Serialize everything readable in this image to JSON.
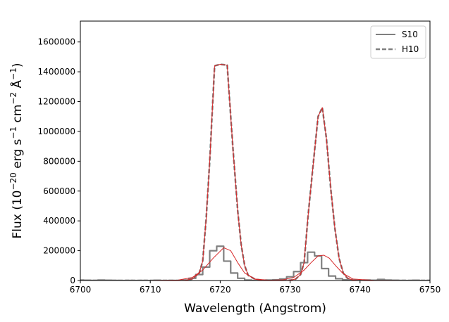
{
  "chart_data": {
    "type": "line",
    "title": "",
    "xlabel": "Wavelength (Angstrom)",
    "ylabel_parts": {
      "base": "Flux (10",
      "exp1": "−20",
      "mid": " erg s",
      "exp2": "−1",
      "mid2": " cm",
      "exp3": "−2",
      "mid3": " Å",
      "exp4": "−1",
      "end": ")"
    },
    "xlim": [
      6700,
      6750
    ],
    "ylim": [
      0,
      1740000
    ],
    "xticks": [
      6700,
      6710,
      6720,
      6730,
      6740,
      6750
    ],
    "xtick_labels": [
      "6700",
      "6710",
      "6720",
      "6730",
      "6740",
      "6750"
    ],
    "yticks": [
      0,
      200000,
      400000,
      600000,
      800000,
      1000000,
      1200000,
      1400000,
      1600000
    ],
    "ytick_labels": [
      "0",
      "200000",
      "400000",
      "600000",
      "800000",
      "1000000",
      "1200000",
      "1400000",
      "1600000"
    ],
    "legend_position": "top-right",
    "series": [
      {
        "name": "S10",
        "style": "steps-solid",
        "color": "#808080",
        "x": [
          6700,
          6701,
          6702,
          6703,
          6704,
          6705,
          6706,
          6707,
          6708,
          6709,
          6710,
          6711,
          6712,
          6713,
          6714,
          6715,
          6716,
          6717,
          6718,
          6719,
          6720,
          6721,
          6722,
          6723,
          6724,
          6725,
          6726,
          6727,
          6728,
          6729,
          6730,
          6731,
          6732,
          6733,
          6734,
          6735,
          6736,
          6737,
          6738,
          6739,
          6740,
          6741,
          6742,
          6743,
          6744,
          6745,
          6746,
          6747,
          6748,
          6749,
          6750
        ],
        "y": [
          3000,
          2000,
          1000,
          3000,
          2000,
          1000,
          0,
          1000,
          0,
          1000,
          0,
          2000,
          0,
          1000,
          0,
          3000,
          15000,
          40000,
          90000,
          200000,
          230000,
          130000,
          50000,
          15000,
          3000,
          0,
          1000,
          3000,
          5000,
          10000,
          25000,
          60000,
          120000,
          190000,
          165000,
          80000,
          30000,
          12000,
          4000,
          2000,
          1000,
          3000,
          2000,
          7000,
          3000,
          2000,
          1000,
          0,
          2000,
          0,
          1000
        ]
      },
      {
        "name": "H10",
        "style": "dashed",
        "color": "#808080",
        "x": [
          6700,
          6702,
          6704,
          6706,
          6708,
          6710,
          6712,
          6714,
          6715,
          6716,
          6717,
          6717.5,
          6718,
          6718.5,
          6719.2,
          6720,
          6721,
          6721.8,
          6722.5,
          6723,
          6723.5,
          6724,
          6725,
          6726,
          6728,
          6730,
          6730.8,
          6731.5,
          6732,
          6732.6,
          6733.3,
          6734,
          6734.6,
          6735.2,
          6735.8,
          6736.4,
          6737,
          6737.6,
          6738.2,
          6739,
          6740,
          6742,
          6744,
          6746,
          6748,
          6750
        ],
        "y": [
          0,
          0,
          0,
          0,
          0,
          0,
          0,
          0,
          2000,
          10000,
          50000,
          130000,
          420000,
          800000,
          1440000,
          1450000,
          1445000,
          900000,
          470000,
          240000,
          100000,
          35000,
          8000,
          2000,
          0,
          2000,
          10000,
          40000,
          120000,
          450000,
          780000,
          1100000,
          1160000,
          950000,
          620000,
          350000,
          150000,
          50000,
          15000,
          3000,
          0,
          0,
          0,
          0,
          0,
          0
        ]
      },
      {
        "name": "",
        "style": "thin-solid",
        "color": "#d62728",
        "x": [
          6700,
          6702,
          6704,
          6706,
          6708,
          6710,
          6712,
          6714,
          6715,
          6716,
          6717,
          6717.5,
          6718,
          6718.5,
          6719.2,
          6720,
          6721,
          6721.8,
          6722.5,
          6723,
          6723.5,
          6724,
          6725,
          6726,
          6728,
          6730,
          6730.8,
          6731.5,
          6732,
          6732.6,
          6733.3,
          6734,
          6734.6,
          6735.2,
          6735.8,
          6736.4,
          6737,
          6737.6,
          6738.2,
          6739,
          6740,
          6742,
          6744,
          6746,
          6748,
          6750
        ],
        "y": [
          0,
          0,
          0,
          0,
          0,
          0,
          0,
          0,
          2000,
          10000,
          50000,
          130000,
          420000,
          800000,
          1440000,
          1450000,
          1445000,
          900000,
          470000,
          240000,
          100000,
          35000,
          8000,
          2000,
          0,
          2000,
          10000,
          40000,
          120000,
          450000,
          780000,
          1100000,
          1160000,
          950000,
          620000,
          350000,
          150000,
          50000,
          15000,
          3000,
          0,
          0,
          0,
          0,
          0,
          0
        ]
      },
      {
        "name": "",
        "style": "thin-solid",
        "color": "#d62728",
        "x": [
          6700,
          6705,
          6710,
          6714,
          6716,
          6717.5,
          6719,
          6720.5,
          6721.5,
          6722.5,
          6723.5,
          6725,
          6727,
          6729,
          6730.5,
          6732,
          6733,
          6734,
          6734.8,
          6735.6,
          6736.5,
          6737.5,
          6739,
          6742,
          6746,
          6750
        ],
        "y": [
          0,
          0,
          0,
          3000,
          20000,
          70000,
          150000,
          220000,
          200000,
          120000,
          50000,
          10000,
          2000,
          5000,
          20000,
          70000,
          120000,
          165000,
          170000,
          150000,
          100000,
          50000,
          10000,
          1000,
          0,
          0
        ]
      }
    ]
  }
}
